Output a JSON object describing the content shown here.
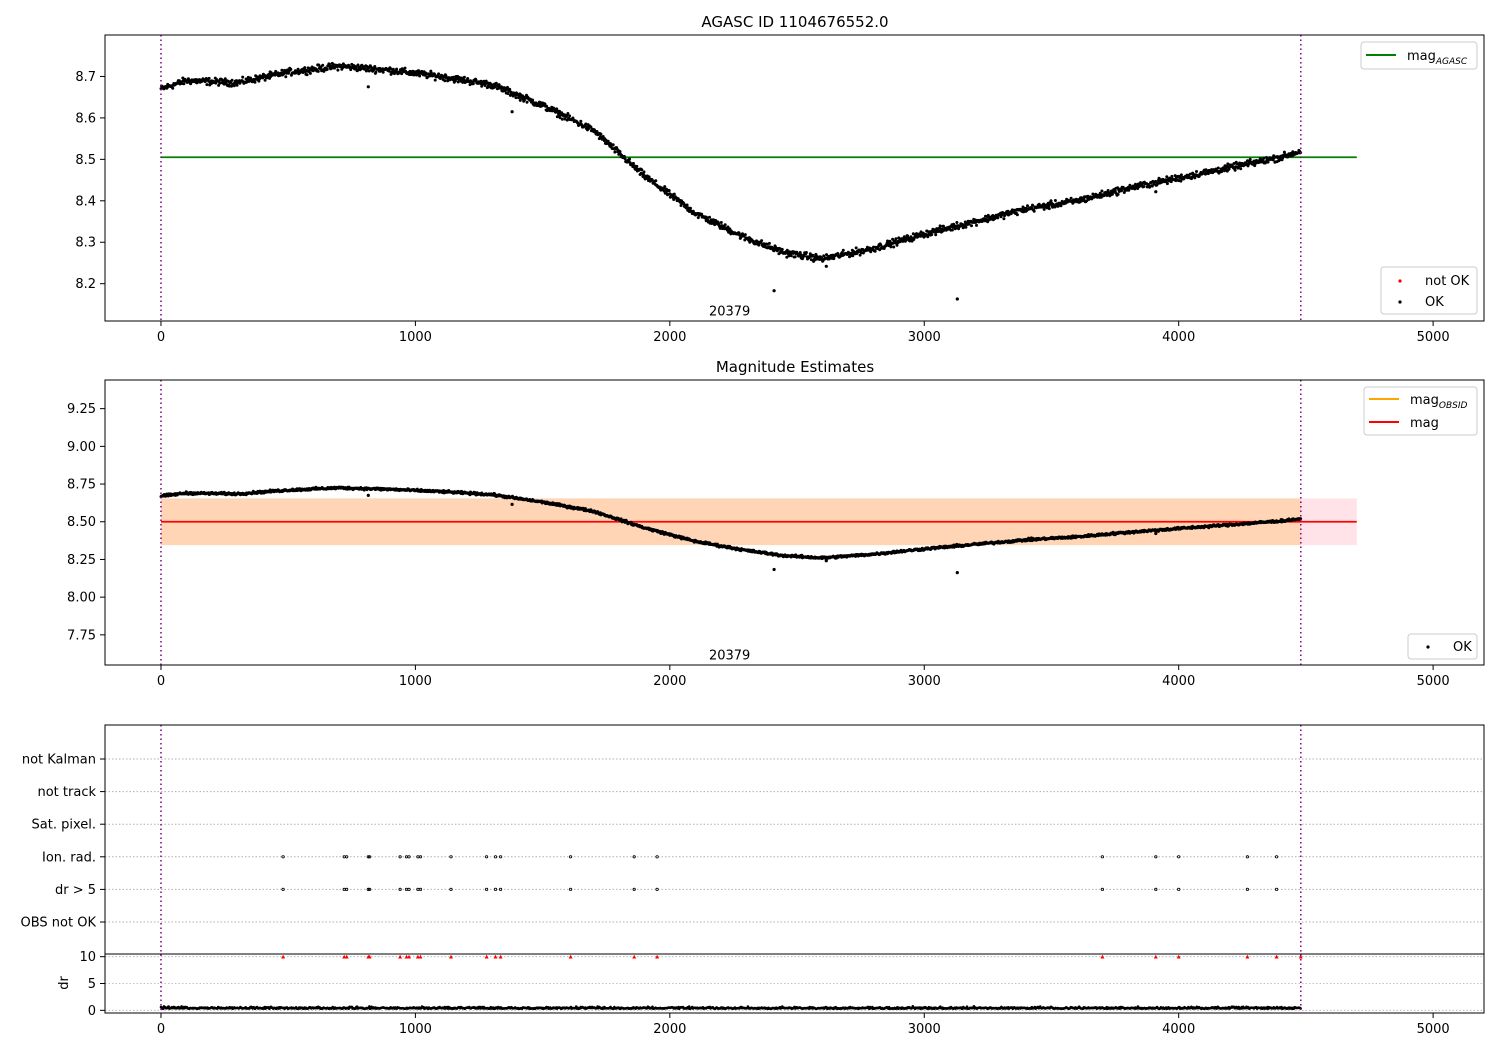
{
  "chart_data": [
    {
      "type": "scatter",
      "title": "AGASC ID 1104676552.0",
      "xlim": [
        -220,
        5200
      ],
      "ylim": [
        8.11,
        8.8
      ],
      "xticks": [
        0,
        1000,
        2000,
        3000,
        4000,
        5000
      ],
      "yticks": [
        8.2,
        8.3,
        8.4,
        8.5,
        8.6,
        8.7
      ],
      "grid": false,
      "vlines": [
        0,
        4480
      ],
      "hlines": [
        {
          "name": "mag_AGASC",
          "y": 8.505,
          "x_range": [
            0,
            4700
          ],
          "color": "#008000"
        }
      ],
      "annotation": {
        "text": "20379",
        "x": 2235,
        "y": 8.135
      },
      "series": [
        {
          "name": "OK",
          "color": "#000000",
          "profile_x": [
            0,
            100,
            300,
            500,
            700,
            900,
            1100,
            1300,
            1500,
            1700,
            1900,
            2100,
            2300,
            2450,
            2600,
            2800,
            3000,
            3200,
            3400,
            3600,
            3800,
            4000,
            4200,
            4400,
            4480
          ],
          "profile_y": [
            8.67,
            8.69,
            8.685,
            8.71,
            8.725,
            8.715,
            8.7,
            8.68,
            8.63,
            8.57,
            8.46,
            8.37,
            8.31,
            8.275,
            8.26,
            8.285,
            8.32,
            8.35,
            8.38,
            8.4,
            8.43,
            8.455,
            8.48,
            8.505,
            8.52
          ],
          "outliers": [
            [
              815,
              8.675
            ],
            [
              1380,
              8.615
            ],
            [
              2410,
              8.183
            ],
            [
              2615,
              8.242
            ],
            [
              3130,
              8.163
            ],
            [
              3910,
              8.422
            ]
          ]
        },
        {
          "name": "not OK",
          "color": "#ff0000",
          "points": []
        }
      ],
      "legend": [
        {
          "label": "mag",
          "sub": "AGASC",
          "color": "#008000",
          "kind": "line"
        }
      ],
      "legend2": [
        {
          "label": "not OK",
          "color": "#ff0000",
          "kind": "dot"
        },
        {
          "label": "OK",
          "color": "#000000",
          "kind": "dot"
        }
      ],
      "legend_loc": "upper right / lower right"
    },
    {
      "type": "scatter",
      "title": "Magnitude Estimates",
      "xlim": [
        -220,
        5200
      ],
      "ylim": [
        7.55,
        9.44
      ],
      "xticks": [
        0,
        1000,
        2000,
        3000,
        4000,
        5000
      ],
      "yticks": [
        7.75,
        8.0,
        8.25,
        8.5,
        8.75,
        9.0,
        9.25
      ],
      "ytick_labels": [
        "7.75",
        "8.00",
        "8.25",
        "8.50",
        "8.75",
        "9.00",
        "9.25"
      ],
      "grid": false,
      "vlines": [
        0,
        4480
      ],
      "bands": [
        {
          "name": "pink",
          "y0": 8.345,
          "y1": 8.655,
          "x_range": [
            0,
            4700
          ],
          "color": "#ffc0cb",
          "alpha": 0.45
        },
        {
          "name": "orange",
          "y0": 8.345,
          "y1": 8.655,
          "x_range": [
            0,
            4480
          ],
          "color": "#ffa500",
          "alpha": 0.22
        }
      ],
      "hlines": [
        {
          "name": "mag",
          "y": 8.5,
          "x_range": [
            0,
            4700
          ],
          "color": "#ff0000"
        }
      ],
      "annotation": {
        "text": "20379",
        "x": 2235,
        "y": 7.62
      },
      "legend": [
        {
          "label": "mag",
          "sub": "OBSID",
          "color": "#ffa500",
          "kind": "line"
        },
        {
          "label": "mag",
          "sub": "",
          "color": "#ff0000",
          "kind": "line"
        }
      ],
      "legend2": [
        {
          "label": "OK",
          "color": "#000000",
          "kind": "dot"
        }
      ],
      "legend_loc": "upper right / lower right"
    },
    {
      "type": "scatter",
      "title": "",
      "xlim": [
        -220,
        5200
      ],
      "xticks": [
        0,
        1000,
        2000,
        3000,
        4000,
        5000
      ],
      "vlines": [
        0,
        4480
      ],
      "flag_rows": [
        "not Kalman",
        "not track",
        "Sat. pixel.",
        "Ion. rad.",
        "dr > 5",
        "OBS not OK"
      ],
      "flag_events_x": [
        480,
        720,
        730,
        815,
        820,
        940,
        965,
        975,
        1010,
        1020,
        1140,
        1280,
        1315,
        1335,
        1610,
        1860,
        1950,
        3700,
        3910,
        4000,
        4270,
        4385
      ],
      "flag_event_rows": [
        "Ion. rad.",
        "dr > 5"
      ],
      "dr": {
        "ylabel": "dr",
        "ylim": [
          -0.5,
          10.5
        ],
        "yticks": [
          0,
          5,
          10
        ],
        "clip_value": 10,
        "clip_color": "#ff0000",
        "baseline": 0.3
      }
    }
  ]
}
